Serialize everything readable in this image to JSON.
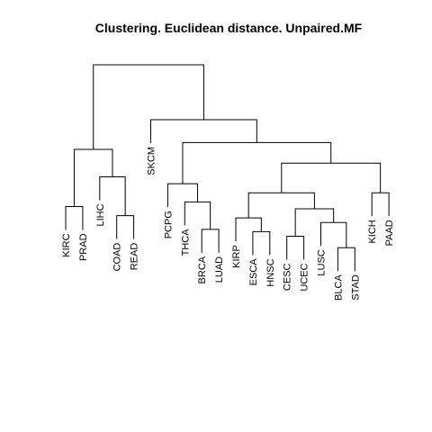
{
  "title": "Clustering. Euclidean  distance. Unpaired.MF",
  "chart_data": {
    "type": "dendrogram",
    "title": "Clustering. Euclidean  distance. Unpaired.MF",
    "xlabel": "",
    "ylabel": "",
    "axes_shown": false,
    "leaf_order": [
      "KIRC",
      "PRAD",
      "LIHC",
      "COAD",
      "READ",
      "SKCM",
      "PCPG",
      "THCA",
      "BRCA",
      "LUAD",
      "KIRP",
      "ESCA",
      "HNSC",
      "CESC",
      "UCEC",
      "LUSC",
      "BLCA",
      "STAD",
      "KICH",
      "PAAD"
    ],
    "merges": [
      {
        "id": "n1",
        "children": [
          "KIRC",
          "PRAD"
        ],
        "height": 0.38
      },
      {
        "id": "n2",
        "children": [
          "COAD",
          "READ"
        ],
        "height": 0.34
      },
      {
        "id": "n3",
        "children": [
          "LIHC",
          "n2"
        ],
        "height": 0.51
      },
      {
        "id": "n4",
        "children": [
          "n1",
          "n3"
        ],
        "height": 0.63
      },
      {
        "id": "n5",
        "children": [
          "BRCA",
          "LUAD"
        ],
        "height": 0.28
      },
      {
        "id": "n6",
        "children": [
          "THCA",
          "n5"
        ],
        "height": 0.4
      },
      {
        "id": "n7",
        "children": [
          "PCPG",
          "n6"
        ],
        "height": 0.48
      },
      {
        "id": "n8",
        "children": [
          "ESCA",
          "HNSC"
        ],
        "height": 0.27
      },
      {
        "id": "n9",
        "children": [
          "KIRP",
          "n8"
        ],
        "height": 0.33
      },
      {
        "id": "n10",
        "children": [
          "CESC",
          "UCEC"
        ],
        "height": 0.25
      },
      {
        "id": "n11",
        "children": [
          "BLCA",
          "STAD"
        ],
        "height": 0.2
      },
      {
        "id": "n12",
        "children": [
          "LUSC",
          "n11"
        ],
        "height": 0.31
      },
      {
        "id": "n13",
        "children": [
          "n10",
          "n12"
        ],
        "height": 0.37
      },
      {
        "id": "n14",
        "children": [
          "n9",
          "n13"
        ],
        "height": 0.44
      },
      {
        "id": "n15",
        "children": [
          "KICH",
          "PAAD"
        ],
        "height": 0.44
      },
      {
        "id": "n16",
        "children": [
          "n14",
          "n15"
        ],
        "height": 0.57
      },
      {
        "id": "n17",
        "children": [
          "n7",
          "n16"
        ],
        "height": 0.66
      },
      {
        "id": "n18",
        "children": [
          "SKCM",
          "n17"
        ],
        "height": 0.76
      },
      {
        "id": "n19",
        "children": [
          "n4",
          "n18"
        ],
        "height": 1.0
      }
    ]
  }
}
